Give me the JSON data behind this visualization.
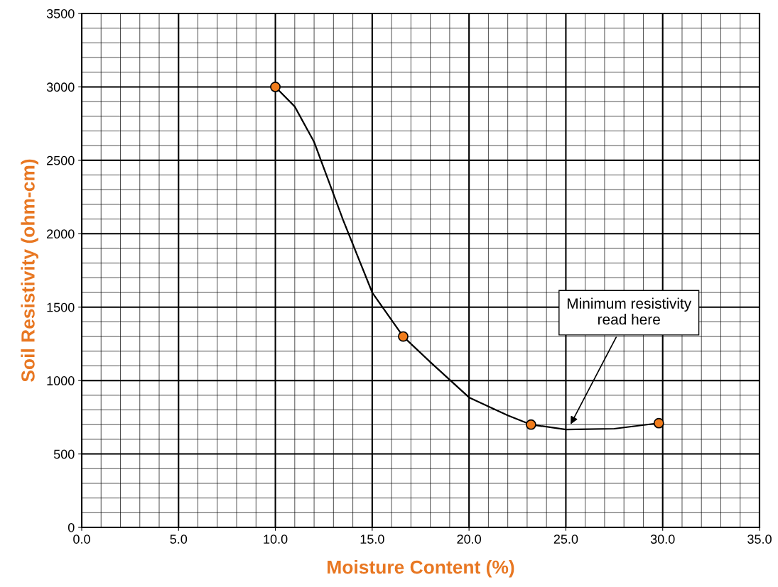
{
  "chart_data": {
    "type": "scatter",
    "xlabel": "Moisture Content (%)",
    "ylabel": "Soil Resistivity (ohm-cm)",
    "xlim": [
      0,
      35
    ],
    "ylim": [
      0,
      3500
    ],
    "xticks": [
      {
        "value": 0,
        "label": "0.0"
      },
      {
        "value": 5,
        "label": "5.0"
      },
      {
        "value": 10,
        "label": "10.0"
      },
      {
        "value": 15,
        "label": "15.0"
      },
      {
        "value": 20,
        "label": "20.0"
      },
      {
        "value": 25,
        "label": "25.0"
      },
      {
        "value": 30,
        "label": "30.0"
      },
      {
        "value": 35,
        "label": "35.0"
      }
    ],
    "yticks": [
      0,
      500,
      1000,
      1500,
      2000,
      2500,
      3000,
      3500
    ],
    "grid": true,
    "legend": false,
    "series": [
      {
        "type": "line",
        "color": "#000000",
        "marker": "none",
        "x": [
          10,
          11,
          12,
          13.5,
          15,
          16.6,
          18,
          20,
          22,
          23.2,
          25,
          27.5,
          29.8
        ],
        "values": [
          3000,
          2866,
          2625,
          2093,
          1600,
          1300,
          1126,
          885,
          763,
          700,
          667,
          672,
          710
        ]
      },
      {
        "color": "#f07c1c",
        "marker": "circle",
        "x": [
          10,
          16.6,
          23.2,
          29.8
        ],
        "values": [
          3000,
          1300,
          700,
          710
        ]
      }
    ],
    "annotations": [
      {
        "text": "Minimum resistivity\nread here",
        "x": 25.2,
        "y": 690
      }
    ]
  }
}
